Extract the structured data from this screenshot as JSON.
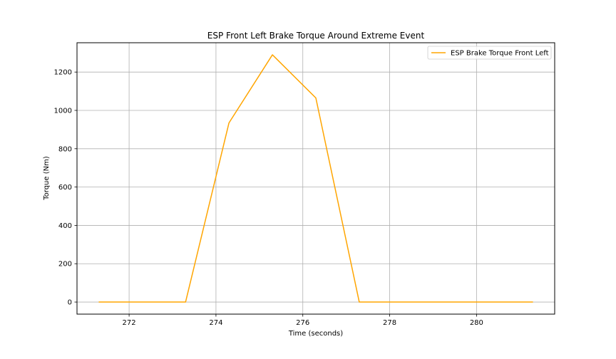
{
  "chart_data": {
    "type": "line",
    "title": "ESP Front Left Brake Torque Around Extreme Event",
    "xlabel": "Time (seconds)",
    "ylabel": "Torque (Nm)",
    "xlim": [
      270.8,
      281.8
    ],
    "ylim": [
      -63,
      1353
    ],
    "xticks": [
      272,
      274,
      276,
      278,
      280
    ],
    "yticks": [
      0,
      200,
      400,
      600,
      800,
      1000,
      1200
    ],
    "grid": true,
    "legend_position": "top-right",
    "series": [
      {
        "name": "ESP Brake Torque Front Left",
        "color": "#ffa500",
        "x": [
          271.3,
          272.3,
          273.3,
          274.3,
          275.3,
          276.3,
          277.3,
          278.3,
          279.3,
          280.3,
          281.3
        ],
        "y": [
          0,
          0,
          0,
          935,
          1290,
          1065,
          0,
          0,
          0,
          0,
          0
        ]
      }
    ]
  }
}
